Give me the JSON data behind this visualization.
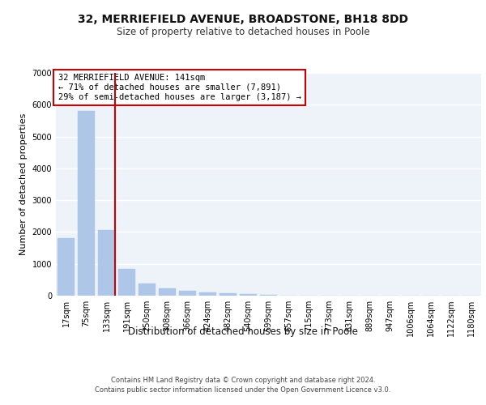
{
  "title1": "32, MERRIEFIELD AVENUE, BROADSTONE, BH18 8DD",
  "title2": "Size of property relative to detached houses in Poole",
  "xlabel": "Distribution of detached houses by size in Poole",
  "ylabel": "Number of detached properties",
  "bar_labels": [
    "17sqm",
    "75sqm",
    "133sqm",
    "191sqm",
    "250sqm",
    "308sqm",
    "366sqm",
    "424sqm",
    "482sqm",
    "540sqm",
    "599sqm",
    "657sqm",
    "715sqm",
    "773sqm",
    "831sqm",
    "889sqm",
    "947sqm",
    "1006sqm",
    "1064sqm",
    "1122sqm",
    "1180sqm"
  ],
  "bar_values": [
    1800,
    5800,
    2070,
    840,
    380,
    235,
    145,
    95,
    75,
    40,
    25,
    0,
    0,
    0,
    0,
    0,
    0,
    0,
    0,
    0,
    0
  ],
  "bar_color": "#aec6e8",
  "property_label": "32 MERRIEFIELD AVENUE: 141sqm",
  "annotation_line1": "← 71% of detached houses are smaller (7,891)",
  "annotation_line2": "29% of semi-detached houses are larger (3,187) →",
  "vline_x": 2.425,
  "ylim": [
    0,
    7000
  ],
  "yticks": [
    0,
    1000,
    2000,
    3000,
    4000,
    5000,
    6000,
    7000
  ],
  "footer1": "Contains HM Land Registry data © Crown copyright and database right 2024.",
  "footer2": "Contains public sector information licensed under the Open Government Licence v3.0.",
  "bg_color": "#eef2f9",
  "grid_color": "#ffffff",
  "box_color": "#cc0000",
  "title1_fontsize": 10,
  "title2_fontsize": 8.5,
  "ylabel_fontsize": 8,
  "xlabel_fontsize": 8.5,
  "tick_fontsize": 7,
  "annot_fontsize": 7.5,
  "footer_fontsize": 6
}
